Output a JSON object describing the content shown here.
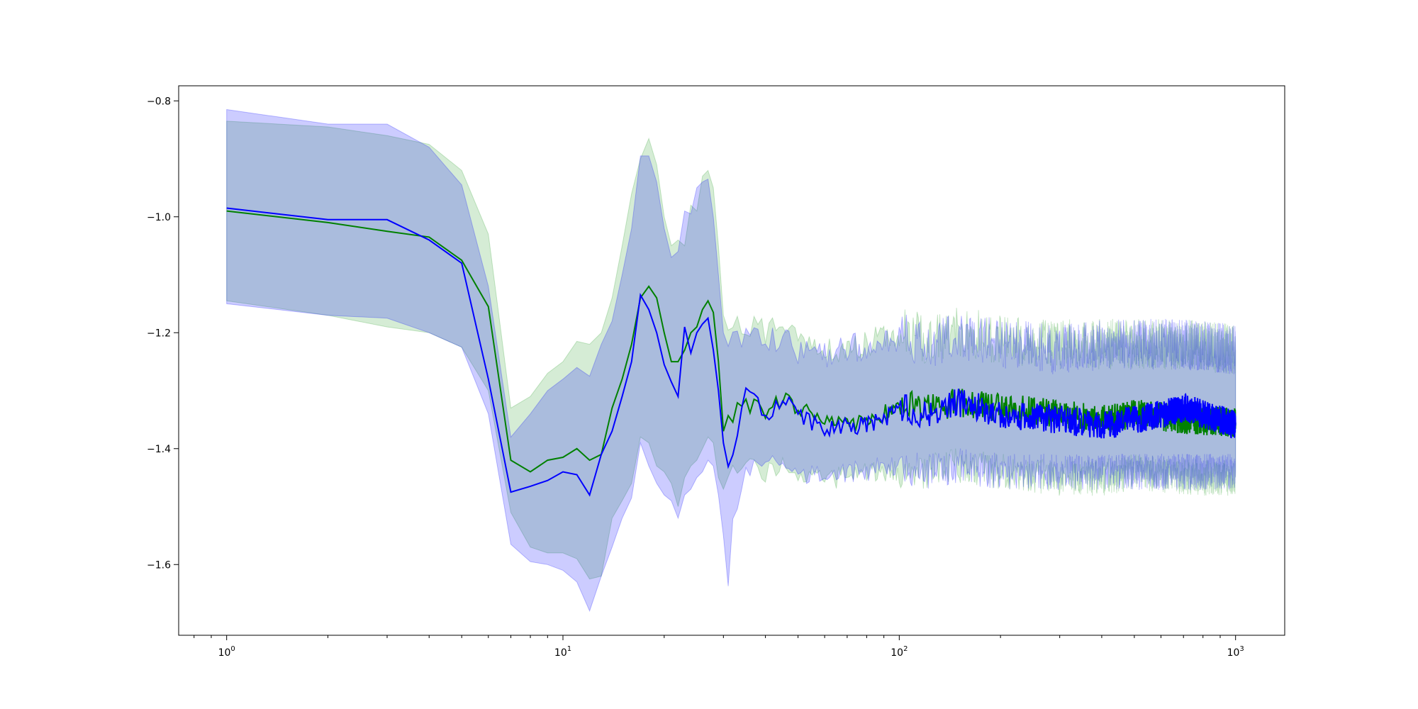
{
  "chart_data": {
    "type": "line",
    "title": "",
    "xlabel": "",
    "ylabel": "",
    "xscale": "log",
    "xlim": [
      0.72,
      1400
    ],
    "ylim": [
      -1.722,
      -0.774
    ],
    "grid": false,
    "legend": "none",
    "x_ticks": [
      {
        "value": 1,
        "base": "10",
        "exp": "0"
      },
      {
        "value": 10,
        "base": "10",
        "exp": "1"
      },
      {
        "value": 100,
        "base": "10",
        "exp": "2"
      },
      {
        "value": 1000,
        "base": "10",
        "exp": "3"
      }
    ],
    "y_ticks": [
      {
        "value": -0.8,
        "label": "−0.8"
      },
      {
        "value": -1.0,
        "label": "−1.0"
      },
      {
        "value": -1.2,
        "label": "−1.2"
      },
      {
        "value": -1.4,
        "label": "−1.4"
      },
      {
        "value": -1.6,
        "label": "−1.6"
      }
    ],
    "series": [
      {
        "color": "#008000",
        "band_color": "#2ca02c",
        "x": [
          1,
          2,
          3,
          4,
          5,
          6,
          7,
          8,
          9,
          10,
          11,
          12,
          13,
          14,
          15,
          16,
          17,
          18,
          19,
          20,
          21,
          22,
          23,
          24,
          25,
          26,
          27,
          28,
          29,
          30,
          32,
          35,
          40,
          45,
          50,
          60,
          70,
          80,
          90,
          100,
          120,
          150,
          200,
          300,
          400,
          500,
          700,
          1000
        ],
        "mean": [
          -0.99,
          -1.01,
          -1.025,
          -1.035,
          -1.075,
          -1.155,
          -1.42,
          -1.44,
          -1.42,
          -1.415,
          -1.4,
          -1.42,
          -1.41,
          -1.33,
          -1.28,
          -1.22,
          -1.14,
          -1.12,
          -1.14,
          -1.2,
          -1.25,
          -1.25,
          -1.23,
          -1.2,
          -1.19,
          -1.16,
          -1.145,
          -1.165,
          -1.25,
          -1.37,
          -1.34,
          -1.32,
          -1.34,
          -1.31,
          -1.33,
          -1.35,
          -1.36,
          -1.35,
          -1.34,
          -1.32,
          -1.33,
          -1.32,
          -1.33,
          -1.34,
          -1.35,
          -1.34,
          -1.35,
          -1.355
        ],
        "upper": [
          -0.835,
          -0.845,
          -0.86,
          -0.875,
          -0.92,
          -1.03,
          -1.33,
          -1.31,
          -1.27,
          -1.25,
          -1.215,
          -1.22,
          -1.2,
          -1.14,
          -1.05,
          -0.96,
          -0.9,
          -0.865,
          -0.91,
          -1.0,
          -1.05,
          -1.04,
          -1.05,
          -0.98,
          -0.99,
          -0.93,
          -0.92,
          -0.95,
          -1.05,
          -1.17,
          -1.2,
          -1.18,
          -1.2,
          -1.18,
          -1.2,
          -1.23,
          -1.23,
          -1.22,
          -1.21,
          -1.2,
          -1.21,
          -1.2,
          -1.21,
          -1.22,
          -1.22,
          -1.22,
          -1.22,
          -1.23
        ],
        "lower": [
          -1.145,
          -1.17,
          -1.19,
          -1.2,
          -1.225,
          -1.3,
          -1.51,
          -1.57,
          -1.58,
          -1.58,
          -1.59,
          -1.625,
          -1.62,
          -1.52,
          -1.49,
          -1.46,
          -1.38,
          -1.39,
          -1.43,
          -1.44,
          -1.46,
          -1.5,
          -1.45,
          -1.43,
          -1.42,
          -1.4,
          -1.38,
          -1.39,
          -1.45,
          -1.47,
          -1.43,
          -1.42,
          -1.44,
          -1.43,
          -1.44,
          -1.45,
          -1.45,
          -1.44,
          -1.44,
          -1.44,
          -1.44,
          -1.43,
          -1.44,
          -1.45,
          -1.45,
          -1.44,
          -1.45,
          -1.45
        ]
      },
      {
        "color": "#0000ff",
        "band_color": "#0000ff",
        "x": [
          1,
          2,
          3,
          4,
          5,
          6,
          7,
          8,
          9,
          10,
          11,
          12,
          13,
          14,
          15,
          16,
          17,
          18,
          19,
          20,
          21,
          22,
          23,
          24,
          25,
          26,
          27,
          28,
          29,
          30,
          31,
          32,
          35,
          40,
          45,
          50,
          60,
          70,
          80,
          90,
          100,
          120,
          150,
          200,
          300,
          400,
          500,
          700,
          1000
        ],
        "mean": [
          -0.985,
          -1.005,
          -1.005,
          -1.04,
          -1.08,
          -1.28,
          -1.475,
          -1.465,
          -1.455,
          -1.44,
          -1.445,
          -1.48,
          -1.41,
          -1.37,
          -1.31,
          -1.25,
          -1.135,
          -1.16,
          -1.2,
          -1.255,
          -1.285,
          -1.31,
          -1.19,
          -1.235,
          -1.2,
          -1.185,
          -1.175,
          -1.23,
          -1.3,
          -1.39,
          -1.42,
          -1.4,
          -1.29,
          -1.35,
          -1.31,
          -1.34,
          -1.37,
          -1.36,
          -1.36,
          -1.35,
          -1.33,
          -1.34,
          -1.32,
          -1.34,
          -1.35,
          -1.36,
          -1.35,
          -1.33,
          -1.36
        ],
        "upper": [
          -0.815,
          -0.84,
          -0.84,
          -0.88,
          -0.945,
          -1.12,
          -1.38,
          -1.34,
          -1.3,
          -1.28,
          -1.26,
          -1.275,
          -1.22,
          -1.18,
          -1.1,
          -1.02,
          -0.895,
          -0.895,
          -0.94,
          -1.02,
          -1.07,
          -1.06,
          -0.99,
          -0.995,
          -0.95,
          -0.94,
          -0.935,
          -1.0,
          -1.1,
          -1.2,
          -1.22,
          -1.22,
          -1.21,
          -1.22,
          -1.21,
          -1.23,
          -1.24,
          -1.23,
          -1.22,
          -1.21,
          -1.21,
          -1.22,
          -1.21,
          -1.22,
          -1.23,
          -1.22,
          -1.22,
          -1.22,
          -1.23
        ],
        "lower": [
          -1.15,
          -1.17,
          -1.175,
          -1.2,
          -1.225,
          -1.34,
          -1.565,
          -1.595,
          -1.6,
          -1.61,
          -1.63,
          -1.68,
          -1.62,
          -1.57,
          -1.52,
          -1.485,
          -1.39,
          -1.43,
          -1.46,
          -1.48,
          -1.49,
          -1.52,
          -1.48,
          -1.47,
          -1.45,
          -1.44,
          -1.42,
          -1.43,
          -1.48,
          -1.55,
          -1.625,
          -1.52,
          -1.44,
          -1.43,
          -1.43,
          -1.44,
          -1.45,
          -1.44,
          -1.44,
          -1.43,
          -1.43,
          -1.44,
          -1.43,
          -1.44,
          -1.44,
          -1.44,
          -1.44,
          -1.44,
          -1.44
        ]
      }
    ]
  }
}
